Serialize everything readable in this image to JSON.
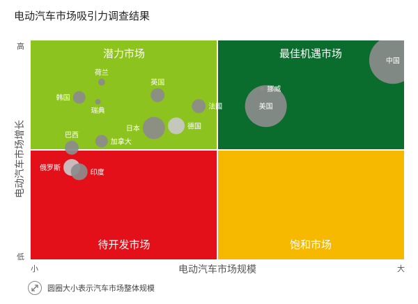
{
  "page": {
    "title": "电动汽车市场吸引力调查结果"
  },
  "chart_data": {
    "type": "scatter",
    "title": "电动汽车市场吸引力调查结果",
    "xlabel": "电动汽车市场规模",
    "ylabel": "电动汽车市场增长",
    "x_tick_labels": {
      "low": "小",
      "high": "大"
    },
    "y_tick_labels": {
      "low": "低",
      "high": "高"
    },
    "xlim": [
      0,
      100
    ],
    "ylim": [
      0,
      100
    ],
    "grid": false,
    "size_note": "圆圈大小表示汽车市场整体规模",
    "quadrants": [
      {
        "key": "top-left",
        "label": "潜力市场",
        "color": "#8DC31E",
        "label_color": "#ffffff"
      },
      {
        "key": "top-right",
        "label": "最佳机遇市场",
        "color": "#0B6D2D",
        "label_color": "#ffffff"
      },
      {
        "key": "bottom-left",
        "label": "待开发市场",
        "color": "#E3101A",
        "label_color": "#ffffff"
      },
      {
        "key": "bottom-right",
        "label": "饱和市场",
        "color": "#F7B900",
        "label_color": "#ffffff"
      }
    ],
    "points": [
      {
        "label": "荷兰",
        "x": 19,
        "y": 81,
        "size": 5,
        "label_pos": "top"
      },
      {
        "label": "韩国",
        "x": 13,
        "y": 74,
        "size": 9,
        "label_pos": "left"
      },
      {
        "label": "瑞典",
        "x": 18,
        "y": 72,
        "size": 4,
        "label_pos": "below"
      },
      {
        "label": "英国",
        "x": 34,
        "y": 75,
        "size": 10,
        "label_pos": "top"
      },
      {
        "label": "挪威",
        "x": 62,
        "y": 78,
        "size": 3,
        "label_pos": "right"
      },
      {
        "label": "法国",
        "x": 45,
        "y": 70,
        "size": 10,
        "label_pos": "right"
      },
      {
        "label": "日本",
        "x": 33,
        "y": 60,
        "size": 16,
        "label_pos": "left"
      },
      {
        "label": "德国",
        "x": 39,
        "y": 61,
        "size": 12,
        "label_pos": "right"
      },
      {
        "label": "巴西",
        "x": 11,
        "y": 51,
        "size": 10,
        "label_pos": "top"
      },
      {
        "label": "加拿大",
        "x": 19,
        "y": 54,
        "size": 9,
        "label_pos": "right"
      },
      {
        "label": "俄罗斯",
        "x": 11,
        "y": 42,
        "size": 12,
        "label_pos": "left"
      },
      {
        "label": "印度",
        "x": 13,
        "y": 40,
        "size": 12,
        "label_pos": "right"
      },
      {
        "label": "美国",
        "x": 63,
        "y": 70,
        "size": 30,
        "label_pos": "center"
      },
      {
        "label": "中国",
        "x": 97,
        "y": 91,
        "size": 34,
        "label_pos": "center"
      }
    ],
    "bubble_color": "#8C8C8C",
    "bubble_light_color": "#C9C9C9"
  }
}
